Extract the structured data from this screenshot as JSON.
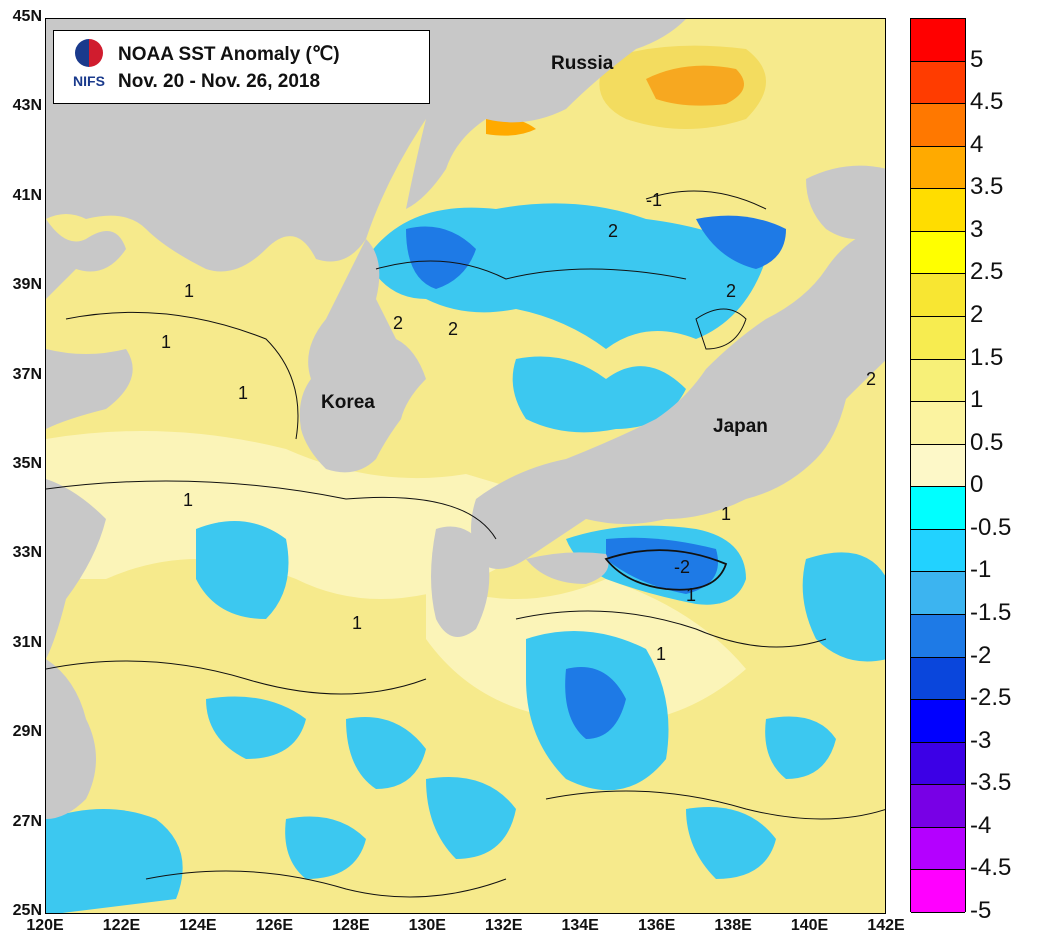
{
  "title": {
    "logo_text": "NIFS",
    "line1": "NOAA SST Anomaly (℃)",
    "line2": "Nov. 20 - Nov. 26, 2018"
  },
  "lat_labels": [
    "45N",
    "43N",
    "41N",
    "39N",
    "37N",
    "35N",
    "33N",
    "31N",
    "29N",
    "27N",
    "25N"
  ],
  "lon_labels": [
    "120E",
    "122E",
    "124E",
    "126E",
    "128E",
    "130E",
    "132E",
    "134E",
    "136E",
    "138E",
    "140E",
    "142E"
  ],
  "regions": {
    "russia": "Russia",
    "korea": "Korea",
    "japan": "Japan"
  },
  "contour_labels": [
    "1",
    "1",
    "1",
    "1",
    "2",
    "2",
    "2",
    "2",
    "-1",
    "-2",
    "1",
    "1",
    "2",
    "1",
    "1"
  ],
  "colorbar": {
    "labels": [
      "5",
      "4.5",
      "4",
      "3.5",
      "3",
      "2.5",
      "2",
      "1.5",
      "1",
      "0.5",
      "0",
      "-0.5",
      "-1",
      "-1.5",
      "-2",
      "-2.5",
      "-3",
      "-3.5",
      "-4",
      "-4.5",
      "-5"
    ],
    "colors_top_to_bottom": [
      "#ff0000",
      "#ff3c00",
      "#ff7800",
      "#ffaa00",
      "#ffdd00",
      "#ffff00",
      "#f8e632",
      "#f7ec50",
      "#f7f078",
      "#fbf3a0",
      "#fdf8c8",
      "#00ffff",
      "#22d2ff",
      "#3cb4f0",
      "#1e7ae6",
      "#0a46dc",
      "#0000ff",
      "#3c00e6",
      "#7800e6",
      "#b400ff",
      "#ff00ff"
    ]
  },
  "colors": {
    "land": "#c8c8c8",
    "warm": "#f5e680",
    "cool": "#3cc8f0"
  }
}
